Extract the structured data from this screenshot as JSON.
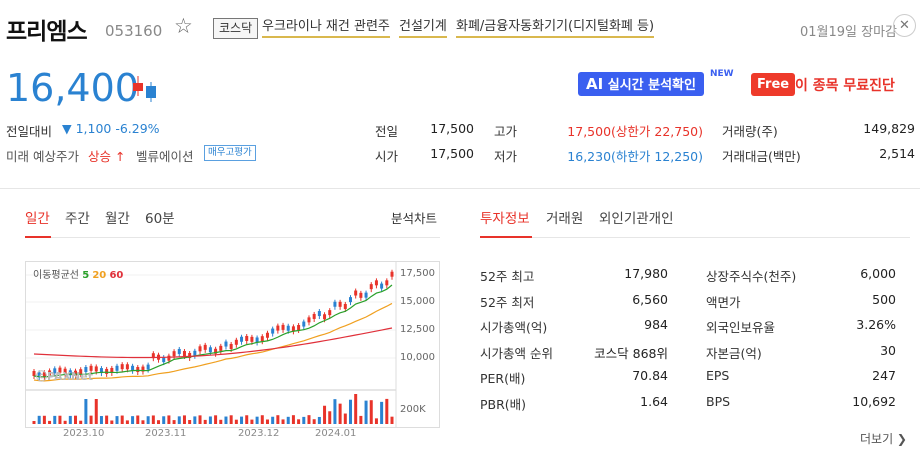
{
  "header": {
    "name": "프리엠스",
    "code": "053160",
    "star_icon": "star-outline-icon",
    "market": "코스닥",
    "tags": [
      "우크라이나 재건 관련주",
      "건설기계",
      "화폐/금융자동화기기(디지털화폐 등)"
    ],
    "date": "01월19일 장마감",
    "close_icon": "close-icon"
  },
  "price": {
    "current": "16,400",
    "change_label": "전일대비",
    "change": "▼ 1,100 -6.29%",
    "forecast_label": "미래 예상주가",
    "forecast_value": "상승 ↑",
    "valuation_label": "벨류에이션",
    "valuation_badge": "매우고평가"
  },
  "buttons": {
    "ai_label": "실시간 분석확인",
    "ai_badge": "AI",
    "new_tag": "NEW",
    "free_badge": "Free",
    "free_text": "이 종목 무료진단"
  },
  "quote": {
    "open_label": "전일",
    "open_val": "17,500",
    "start_label": "시가",
    "start_val": "17,500",
    "high_label": "고가",
    "high_val": "17,500(상한가 22,750)",
    "low_label": "저가",
    "low_val": "16,230(하한가 12,250)",
    "volume_label": "거래량(주)",
    "volume_val": "149,829",
    "amount_label": "거래대금(백만)",
    "amount_val": "2,514"
  },
  "left_tabs": [
    "일간",
    "주간",
    "월간",
    "60분"
  ],
  "analysis_link": "분석차트",
  "right_tabs": [
    "투자정보",
    "거래원",
    "외인기관개인"
  ],
  "chart": {
    "legend_label": "이동평균선",
    "ma": [
      "5",
      "20",
      "60"
    ],
    "ma_colors": [
      "#2aa02a",
      "#f0a020",
      "#e0303a"
    ],
    "price_ticks": [
      "17,500",
      "15,000",
      "12,500",
      "10,000"
    ],
    "volume_tick": "200K",
    "x_ticks": [
      "2023.10",
      "2023.11",
      "2023.12",
      "2024.01"
    ],
    "watermark": "ⓒPAXNet"
  },
  "invest": [
    {
      "label": "52주 최고",
      "value": "17,980",
      "label2": "상장주식수(천주)",
      "value2": "6,000"
    },
    {
      "label": "52주 최저",
      "value": "6,560",
      "label2": "액면가",
      "value2": "500"
    },
    {
      "label": "시가총액(억)",
      "value": "984",
      "label2": "외국인보유율",
      "value2": "3.26%"
    },
    {
      "label": "시가총액 순위",
      "value": "코스닥 868위",
      "label2": "자본금(억)",
      "value2": "30"
    },
    {
      "label": "PER(배)",
      "value": "70.84",
      "label2": "EPS",
      "value2": "247"
    },
    {
      "label": "PBR(배)",
      "value": "1.64",
      "label2": "BPS",
      "value2": "10,692"
    }
  ],
  "more_link": "더보기 ❯"
}
